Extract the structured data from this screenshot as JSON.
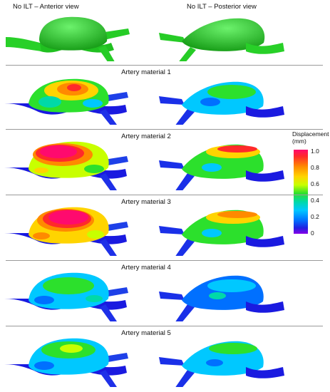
{
  "header": {
    "anterior_title": "No ILT – Anterior view",
    "posterior_title": "No ILT – Posterior view"
  },
  "rows": [
    {
      "label": "Artery material 1"
    },
    {
      "label": "Artery material 2"
    },
    {
      "label": "Artery material 3"
    },
    {
      "label": "Artery material 4"
    },
    {
      "label": "Artery material 5"
    }
  ],
  "legend": {
    "title_line1": "Displacement",
    "title_line2": "(mm)",
    "ticks": [
      "1.0",
      "0.8",
      "0.6",
      "0.4",
      "0.2",
      "0"
    ]
  },
  "colors": {
    "geometry_green": "#2fe02f",
    "max": "#ff0a6e",
    "min": "#8800e8"
  }
}
